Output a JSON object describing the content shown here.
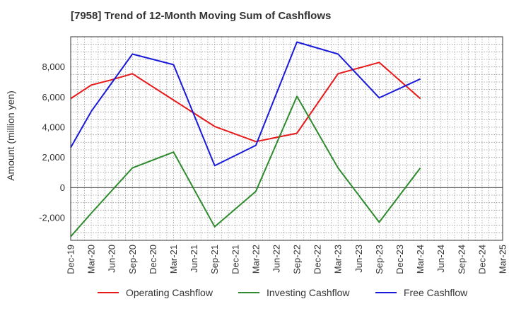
{
  "chart_data": {
    "type": "line",
    "title": "[7958]  Trend of 12-Month Moving Sum of Cashflows",
    "ylabel": "Amount (million yen)",
    "xlabel": "",
    "x": [
      "Dec-19",
      "Mar-20",
      "Jun-20",
      "Sep-20",
      "Dec-20",
      "Mar-21",
      "Jun-21",
      "Sep-21",
      "Dec-21",
      "Mar-22",
      "Jun-22",
      "Sep-22",
      "Dec-22",
      "Mar-23",
      "Jun-23",
      "Sep-23",
      "Dec-23",
      "Mar-24",
      "Jun-24",
      "Sep-24",
      "Dec-24",
      "Mar-25"
    ],
    "ylim": [
      -3500,
      10000
    ],
    "yticks": [
      -2000,
      0,
      2000,
      4000,
      6000,
      8000
    ],
    "ytick_labels": [
      "-2,000",
      "0",
      "2,000",
      "4,000",
      "6,000",
      "8,000"
    ],
    "grid": true,
    "legend_position": "bottom",
    "series": [
      {
        "name": "Operating Cashflow",
        "color": "#e8191a",
        "values": [
          5900,
          6800,
          7150,
          7550,
          null,
          5800,
          null,
          4050,
          null,
          3050,
          null,
          3600,
          null,
          7550,
          null,
          8300,
          null,
          5900,
          null,
          null,
          null,
          null
        ]
      },
      {
        "name": "Investing Cashflow",
        "color": "#2e8b2e",
        "values": [
          -3250,
          -1700,
          null,
          1300,
          null,
          2350,
          null,
          -2600,
          null,
          -250,
          null,
          6050,
          null,
          1300,
          null,
          -2300,
          null,
          1300,
          null,
          null,
          null,
          null
        ]
      },
      {
        "name": "Free Cashflow",
        "color": "#1a1adb",
        "values": [
          2650,
          5050,
          null,
          8850,
          null,
          8150,
          null,
          1450,
          null,
          2800,
          null,
          9650,
          null,
          8850,
          null,
          5950,
          null,
          7200,
          null,
          null,
          null,
          null
        ]
      }
    ]
  }
}
